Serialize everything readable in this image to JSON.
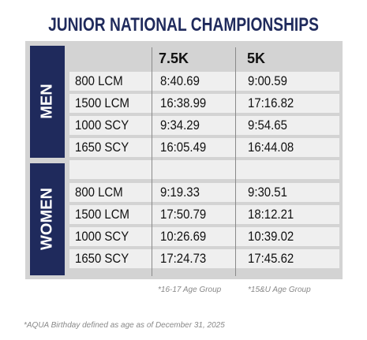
{
  "title": "JUNIOR NATIONAL CHAMPIONSHIPS",
  "columns": [
    "7.5K",
    "5K"
  ],
  "sections": [
    {
      "label": "MEN",
      "rows": [
        [
          "800 LCM",
          "8:40.69",
          "9:00.59"
        ],
        [
          "1500 LCM",
          "16:38.99",
          "17:16.82"
        ],
        [
          "1000 SCY",
          "9:34.29",
          "9:54.65"
        ],
        [
          "1650 SCY",
          "16:05.49",
          "16:44.08"
        ]
      ]
    },
    {
      "label": "WOMEN",
      "rows": [
        [
          "800 LCM",
          "9:19.33",
          "9:30.51"
        ],
        [
          "1500 LCM",
          "17:50.79",
          "18:12.21"
        ],
        [
          "1000 SCY",
          "10:26.69",
          "10:39.02"
        ],
        [
          "1650 SCY",
          "17:24.73",
          "17:45.62"
        ]
      ]
    }
  ],
  "footnotes": [
    "*16-17 Age Group",
    "*15&U Age Group"
  ],
  "note": "*AQUA Birthday defined as age as of December 31, 2025"
}
